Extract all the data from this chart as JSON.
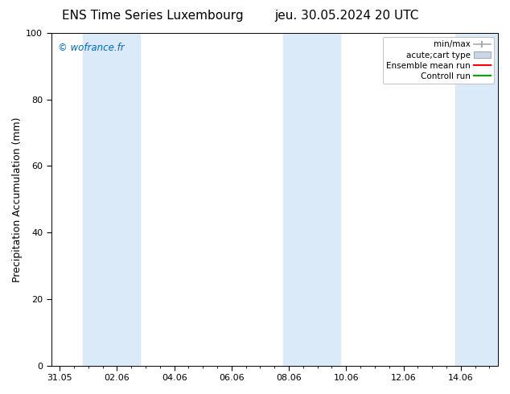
{
  "title_left": "ENS Time Series Luxembourg",
  "title_right": "jeu. 30.05.2024 20 UTC",
  "ylabel": "Precipitation Accumulation (mm)",
  "watermark": "© wofrance.fr",
  "watermark_color": "#0066cc",
  "ylim": [
    0,
    100
  ],
  "yticks": [
    0,
    20,
    40,
    60,
    80,
    100
  ],
  "xtick_labels": [
    "31.05",
    "02.06",
    "04.06",
    "06.06",
    "08.06",
    "10.06",
    "12.06",
    "14.06"
  ],
  "xtick_positions": [
    0,
    2,
    4,
    6,
    8,
    10,
    12,
    14
  ],
  "xlim": [
    -0.3,
    15.3
  ],
  "shaded_bands": [
    {
      "x_start": 0.8,
      "x_end": 2.8
    },
    {
      "x_start": 7.8,
      "x_end": 9.8
    },
    {
      "x_start": 13.8,
      "x_end": 15.3
    }
  ],
  "shaded_color": "#dbeaf8",
  "legend_entries": [
    {
      "label": "min/max",
      "color": "#aaaaaa",
      "type": "errorbar"
    },
    {
      "label": "acute;cart type",
      "color": "#c8d8e8",
      "type": "bar"
    },
    {
      "label": "Ensemble mean run",
      "color": "#ff0000",
      "type": "line"
    },
    {
      "label": "Controll run",
      "color": "#00aa00",
      "type": "line"
    }
  ],
  "bg_color": "#ffffff",
  "plot_bg_color": "#ffffff",
  "title_fontsize": 11,
  "label_fontsize": 9,
  "tick_fontsize": 8,
  "legend_fontsize": 7.5
}
